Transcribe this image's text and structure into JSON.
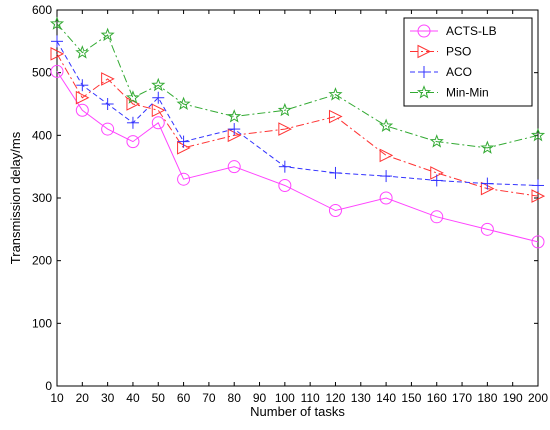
{
  "chart_data": {
    "type": "line",
    "title": "",
    "xlabel": "Number of tasks",
    "ylabel": "Transmission delay/ms",
    "xlim": [
      10,
      200
    ],
    "ylim": [
      0,
      600
    ],
    "xticks": [
      10,
      20,
      30,
      40,
      50,
      60,
      70,
      80,
      90,
      100,
      110,
      120,
      130,
      140,
      150,
      160,
      170,
      180,
      190,
      200
    ],
    "yticks": [
      0,
      100,
      200,
      300,
      400,
      500,
      600
    ],
    "grid": false,
    "legend_position": "top-right",
    "series": [
      {
        "name": "ACTS-LB",
        "color": "#ff44ff",
        "marker": "circle",
        "line_style": "solid",
        "x": [
          10,
          20,
          30,
          40,
          50,
          60,
          80,
          100,
          120,
          140,
          160,
          180,
          200
        ],
        "values": [
          502,
          440,
          410,
          390,
          420,
          330,
          350,
          320,
          280,
          300,
          270,
          250,
          230
        ]
      },
      {
        "name": "PSO",
        "color": "#ff3333",
        "marker": "triangle-right",
        "line_style": "dashdot",
        "x": [
          10,
          20,
          30,
          40,
          50,
          60,
          80,
          100,
          120,
          140,
          160,
          180,
          200
        ],
        "values": [
          530,
          460,
          490,
          450,
          440,
          380,
          400,
          410,
          430,
          368,
          340,
          315,
          303
        ]
      },
      {
        "name": "ACO",
        "color": "#3333ff",
        "marker": "plus",
        "line_style": "dashed",
        "x": [
          10,
          20,
          30,
          40,
          50,
          60,
          80,
          100,
          120,
          140,
          160,
          180,
          200
        ],
        "values": [
          550,
          480,
          450,
          420,
          460,
          390,
          410,
          350,
          340,
          335,
          328,
          323,
          320
        ]
      },
      {
        "name": "Min-Min",
        "color": "#33aa33",
        "marker": "star",
        "line_style": "dashdot",
        "x": [
          10,
          20,
          30,
          40,
          50,
          60,
          80,
          100,
          120,
          140,
          160,
          180,
          200
        ],
        "values": [
          578,
          532,
          560,
          460,
          480,
          450,
          430,
          440,
          465,
          415,
          390,
          380,
          400
        ]
      }
    ]
  }
}
